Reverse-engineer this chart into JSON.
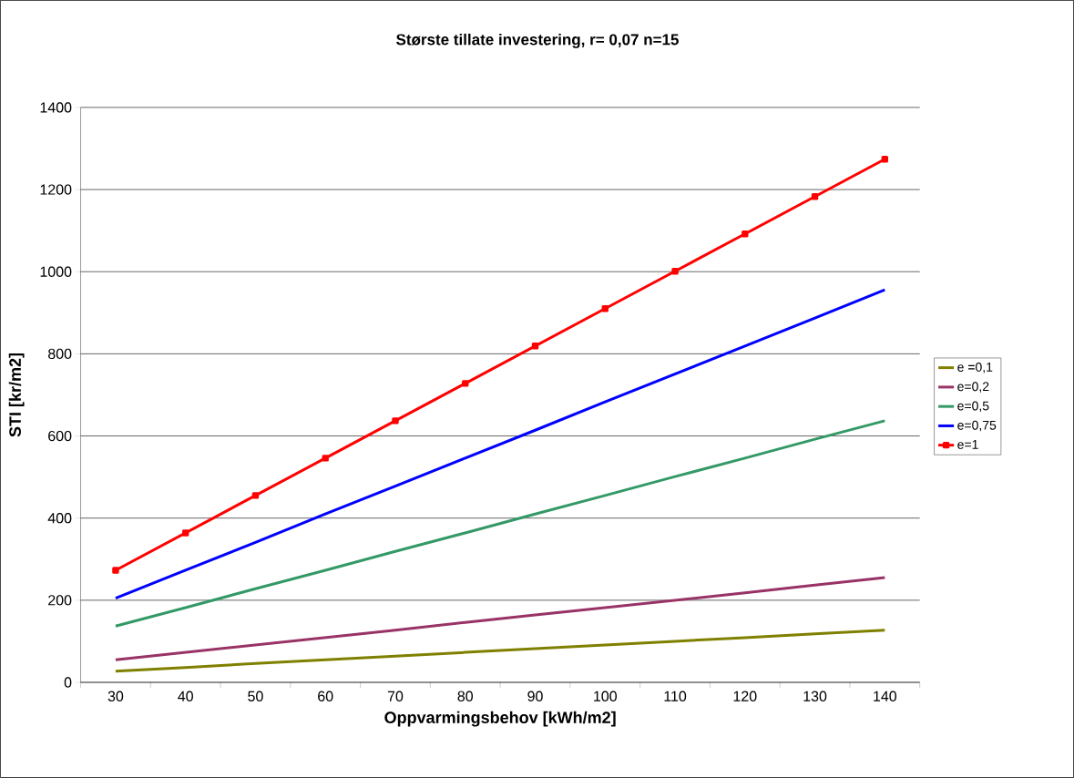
{
  "chart_data": {
    "type": "line",
    "title": "Største tillate investering, r= 0,07 n=15",
    "xlabel": "Oppvarmingsbehov [kWh/m2]",
    "ylabel": "STI [kr/m2]",
    "categories": [
      "30",
      "40",
      "50",
      "60",
      "70",
      "80",
      "90",
      "100",
      "110",
      "120",
      "130",
      "140"
    ],
    "series": [
      {
        "name": "e =0,1",
        "color": "#808000",
        "marker": "none",
        "values": [
          27,
          36,
          46,
          55,
          64,
          73,
          82,
          91,
          100,
          109,
          118,
          127
        ]
      },
      {
        "name": "e=0,2",
        "color": "#993366",
        "marker": "none",
        "values": [
          55,
          73,
          91,
          109,
          127,
          146,
          164,
          182,
          200,
          218,
          237,
          255
        ]
      },
      {
        "name": "e=0,5",
        "color": "#339966",
        "marker": "none",
        "values": [
          137,
          182,
          228,
          273,
          319,
          364,
          410,
          455,
          501,
          546,
          592,
          637
        ]
      },
      {
        "name": "e=0,75",
        "color": "#0000ff",
        "marker": "none",
        "values": [
          205,
          273,
          341,
          410,
          478,
          546,
          614,
          683,
          751,
          819,
          887,
          956
        ]
      },
      {
        "name": "e=1",
        "color": "#ff0000",
        "marker": "square",
        "values": [
          273,
          364,
          455,
          546,
          637,
          728,
          819,
          910,
          1001,
          1092,
          1183,
          1274
        ]
      }
    ],
    "ylim": [
      0,
      1400
    ],
    "yticks": [
      0,
      200,
      400,
      600,
      800,
      1000,
      1200,
      1400
    ],
    "grid": "y",
    "legend": "right"
  }
}
